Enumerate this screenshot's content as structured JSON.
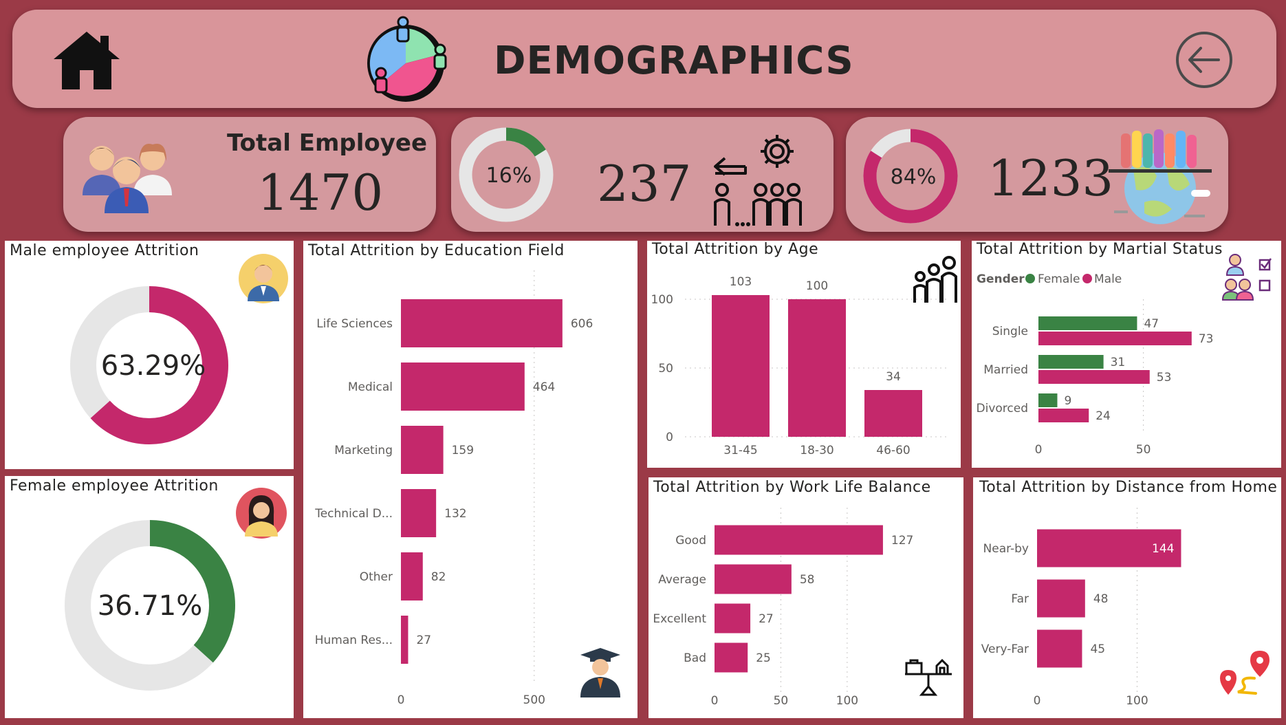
{
  "header": {
    "title": "DEMOGRAPHICS"
  },
  "kpi": {
    "total": {
      "label": "Total Employee",
      "value": "1470"
    },
    "attrition": {
      "percent_label": "16%",
      "percent": 16,
      "count": "237"
    },
    "retained": {
      "percent_label": "84%",
      "percent": 84,
      "count": "1233"
    }
  },
  "male": {
    "title": "Male employee Attrition",
    "value_label": "63.29%",
    "percent": 63.29
  },
  "female": {
    "title": "Female employee Attrition",
    "value_label": "36.71%",
    "percent": 36.71
  },
  "colors": {
    "male": "#c4286b",
    "female": "#3a8344",
    "track": "#e6e6e6",
    "header": "#d9959a",
    "background": "#9b3a47"
  },
  "chart_data": [
    {
      "id": "education",
      "type": "bar",
      "orientation": "horizontal",
      "title": "Total Attrition by Education Field",
      "categories": [
        "Life Sciences",
        "Medical",
        "Marketing",
        "Technical D...",
        "Other",
        "Human Res..."
      ],
      "values": [
        606,
        464,
        159,
        132,
        82,
        27
      ],
      "xticks": [
        0,
        500
      ],
      "xlim": [
        0,
        720
      ]
    },
    {
      "id": "age",
      "type": "bar",
      "orientation": "vertical",
      "title": "Total Attrition by Age",
      "categories": [
        "31-45",
        "18-30",
        "46-60"
      ],
      "values": [
        103,
        100,
        34
      ],
      "yticks": [
        0,
        50,
        100
      ],
      "ylim": [
        0,
        110
      ]
    },
    {
      "id": "marital",
      "type": "bar",
      "orientation": "horizontal",
      "title": "Total Attrition by Martial Status",
      "legend_title": "Gender",
      "categories": [
        "Single",
        "Married",
        "Divorced"
      ],
      "series": [
        {
          "name": "Female",
          "values": [
            47,
            31,
            9
          ]
        },
        {
          "name": "Male",
          "values": [
            73,
            53,
            24
          ]
        }
      ],
      "xticks": [
        0,
        50
      ],
      "xlim": [
        0,
        77
      ]
    },
    {
      "id": "worklife",
      "type": "bar",
      "orientation": "horizontal",
      "title": "Total Attrition by Work Life Balance",
      "categories": [
        "Good",
        "Average",
        "Excellent",
        "Bad"
      ],
      "values": [
        127,
        58,
        27,
        25
      ],
      "xticks": [
        0,
        50,
        100
      ],
      "xlim": [
        0,
        140
      ]
    },
    {
      "id": "distance",
      "type": "bar",
      "orientation": "horizontal",
      "title": "Total Attrition by Distance from Home",
      "categories": [
        "Near-by",
        "Far",
        "Very-Far"
      ],
      "values": [
        144,
        48,
        45
      ],
      "xticks": [
        0,
        100
      ],
      "xlim": [
        0,
        165
      ]
    }
  ]
}
